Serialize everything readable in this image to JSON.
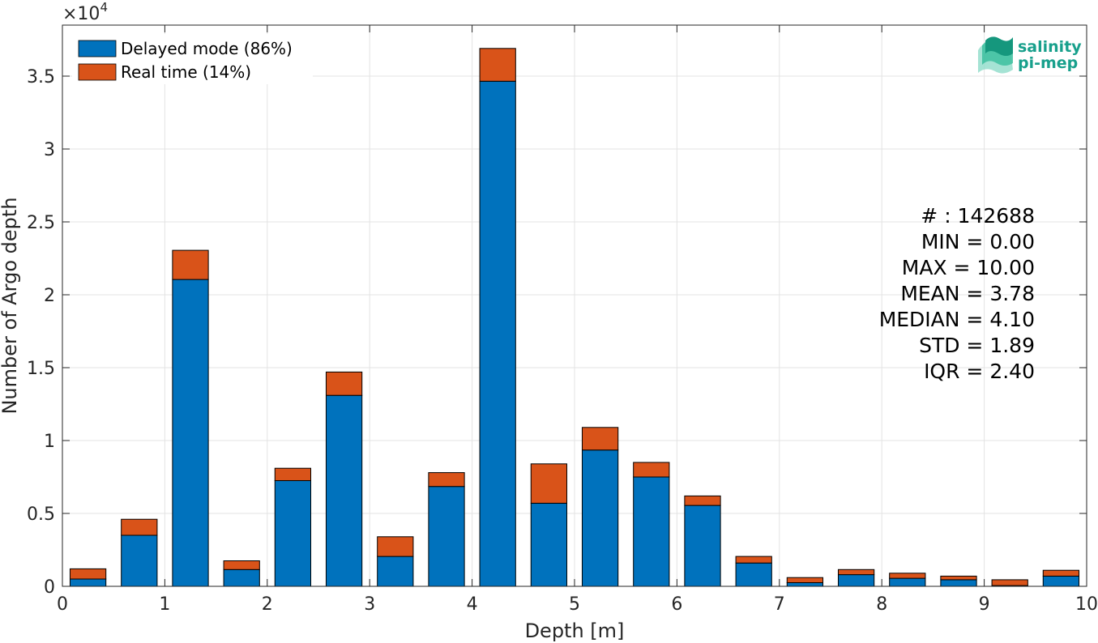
{
  "chart_data": {
    "type": "bar",
    "stacked": true,
    "x": [
      0.25,
      0.75,
      1.25,
      1.75,
      2.25,
      2.75,
      3.25,
      3.75,
      4.25,
      4.75,
      5.25,
      5.75,
      6.25,
      6.75,
      7.25,
      7.75,
      8.25,
      8.75,
      9.25,
      9.75
    ],
    "bin_width": 0.5,
    "series": [
      {
        "name": "Delayed mode (86%)",
        "color": "#0072bd",
        "values": [
          500,
          3500,
          21050,
          1150,
          7250,
          13100,
          2050,
          6850,
          34650,
          5700,
          9350,
          7500,
          5550,
          1600,
          250,
          800,
          550,
          450,
          50,
          700
        ]
      },
      {
        "name": "Real time (14%)",
        "color": "#d95319",
        "values": [
          700,
          1100,
          2000,
          600,
          850,
          1600,
          1350,
          950,
          2250,
          2700,
          1550,
          1000,
          650,
          450,
          350,
          350,
          350,
          250,
          400,
          400
        ]
      }
    ],
    "xlabel": "Depth [m]",
    "ylabel": "Number of Argo depth",
    "exponent_label": "×10",
    "exponent_power": "4",
    "xlim": [
      0,
      10
    ],
    "ylim": [
      0,
      38500
    ],
    "xticks": [
      0,
      1,
      2,
      3,
      4,
      5,
      6,
      7,
      8,
      9,
      10
    ],
    "yticks": [
      0,
      5000,
      10000,
      15000,
      20000,
      25000,
      30000,
      35000
    ],
    "ytick_labels": [
      "0",
      "0.5",
      "1",
      "1.5",
      "2",
      "2.5",
      "3",
      "3.5"
    ],
    "grid": true,
    "legend_position": "top-left",
    "stats": [
      "# : 142688",
      "MIN = 0.00",
      "MAX =  10.00",
      "MEAN = 3.78",
      "MEDIAN = 4.10",
      "STD = 1.89",
      "IQR = 2.40"
    ]
  },
  "logo": {
    "line1": "salinity",
    "line2": "pi-mep"
  }
}
